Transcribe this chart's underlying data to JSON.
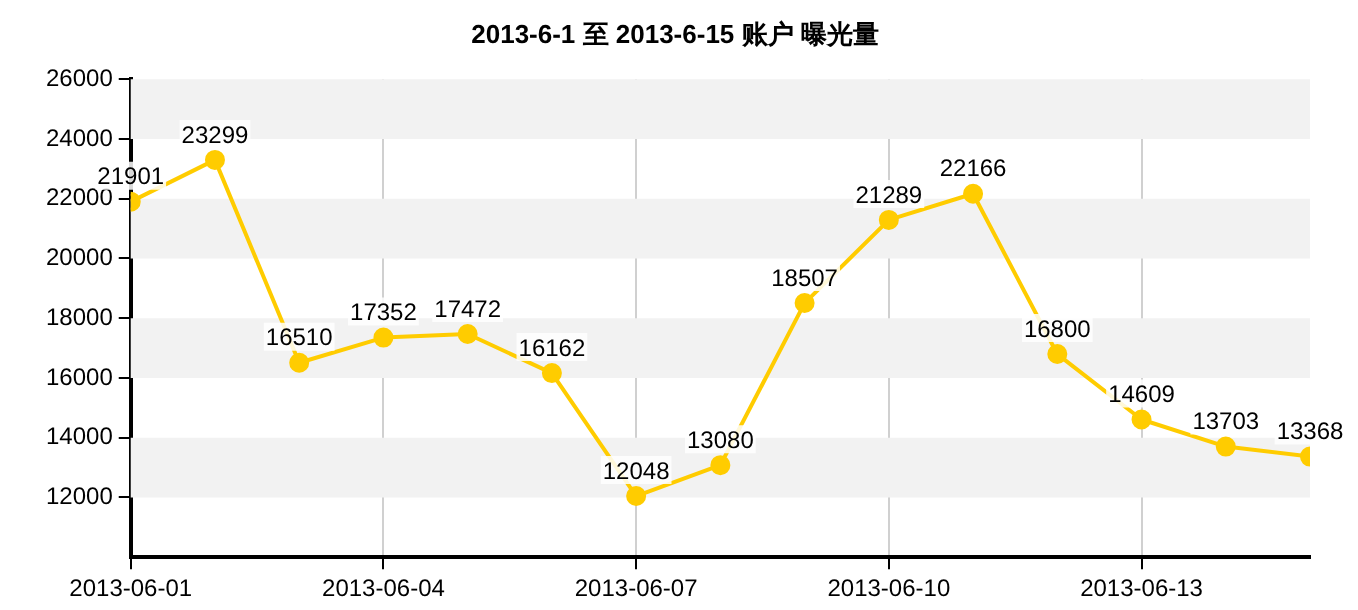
{
  "chart_data": {
    "type": "line",
    "title": "2013-6-1 至 2013-6-15 账户 曝光量",
    "x": [
      "2013-06-01",
      "2013-06-02",
      "2013-06-03",
      "2013-06-04",
      "2013-06-05",
      "2013-06-06",
      "2013-06-07",
      "2013-06-08",
      "2013-06-09",
      "2013-06-10",
      "2013-06-11",
      "2013-06-12",
      "2013-06-13",
      "2013-06-14",
      "2013-06-15"
    ],
    "series": [
      {
        "color": "#ffcc00",
        "values": [
          21901,
          23299,
          16510,
          17352,
          17472,
          16162,
          12048,
          13080,
          18507,
          21289,
          22166,
          16800,
          14609,
          13703,
          13368
        ]
      }
    ],
    "xlim": [
      "2013-06-01",
      "2013-06-15"
    ],
    "xticks": [
      "2013-06-01",
      "2013-06-04",
      "2013-06-07",
      "2013-06-10",
      "2013-06-13"
    ],
    "ylim": [
      10000,
      26000
    ],
    "yticks": [
      12000,
      14000,
      16000,
      18000,
      20000,
      22000,
      24000,
      26000
    ],
    "grid": true,
    "legend": false,
    "marker": "circle",
    "line_style": "solid",
    "data_labels": true
  }
}
